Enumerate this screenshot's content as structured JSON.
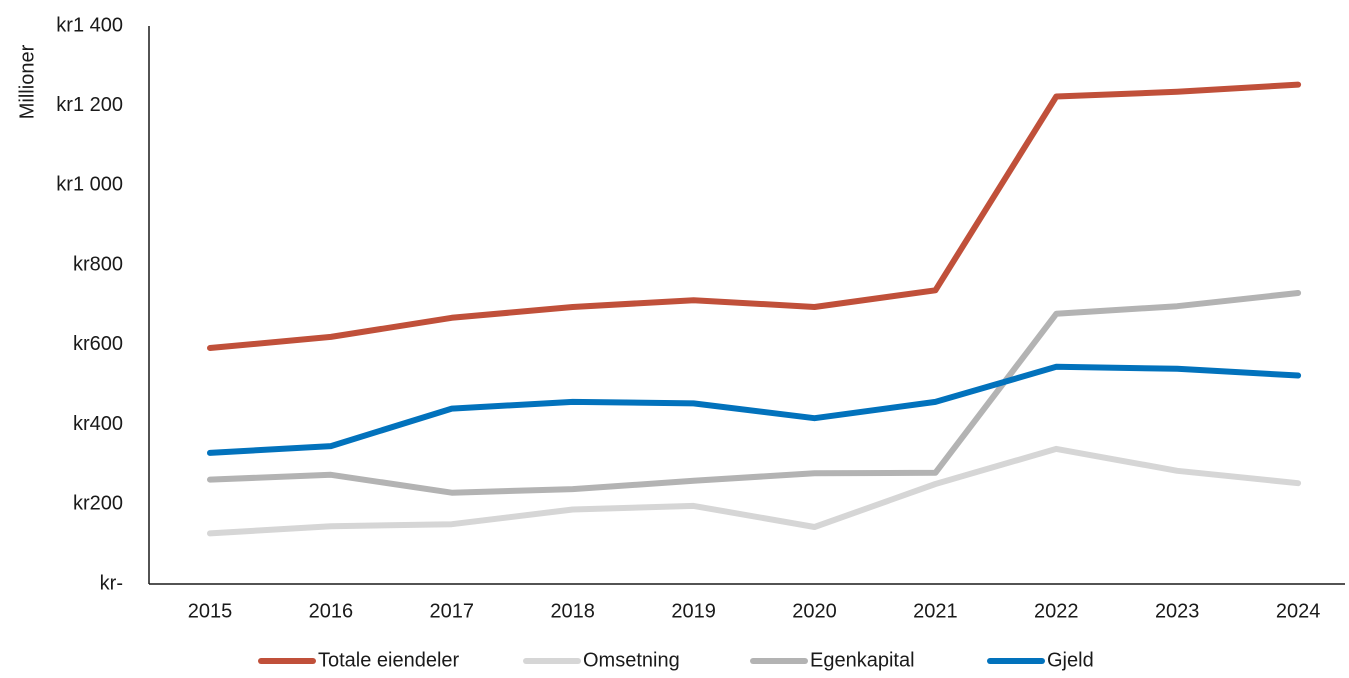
{
  "chart_data": {
    "type": "line",
    "title": "",
    "ylabel": "Millioner",
    "xlabel": "",
    "ylim": [
      0,
      1400
    ],
    "y_ticks": [
      {
        "value": 0,
        "label": "kr-"
      },
      {
        "value": 200,
        "label": "kr200"
      },
      {
        "value": 400,
        "label": "kr400"
      },
      {
        "value": 600,
        "label": "kr600"
      },
      {
        "value": 800,
        "label": "kr800"
      },
      {
        "value": 1000,
        "label": "kr1 000"
      },
      {
        "value": 1200,
        "label": "kr1 200"
      },
      {
        "value": 1400,
        "label": "kr1 400"
      }
    ],
    "categories": [
      "2015",
      "2016",
      "2017",
      "2018",
      "2019",
      "2020",
      "2021",
      "2022",
      "2023",
      "2024"
    ],
    "grid": false,
    "legend_position": "bottom",
    "series": [
      {
        "name": "Totale eiendeler",
        "color": "#C0503A",
        "values": [
          592,
          620,
          668,
          695,
          712,
          695,
          737,
          1223,
          1235,
          1253
        ]
      },
      {
        "name": "Omsetning",
        "color": "#D6D6D6",
        "values": [
          127,
          145,
          150,
          187,
          196,
          143,
          251,
          339,
          284,
          253
        ]
      },
      {
        "name": "Egenkapital",
        "color": "#B3B3B3",
        "values": [
          262,
          274,
          229,
          238,
          259,
          278,
          279,
          678,
          697,
          730
        ]
      },
      {
        "name": "Gjeld",
        "color": "#0272BC",
        "values": [
          329,
          346,
          440,
          457,
          453,
          416,
          457,
          545,
          540,
          523
        ]
      }
    ]
  }
}
